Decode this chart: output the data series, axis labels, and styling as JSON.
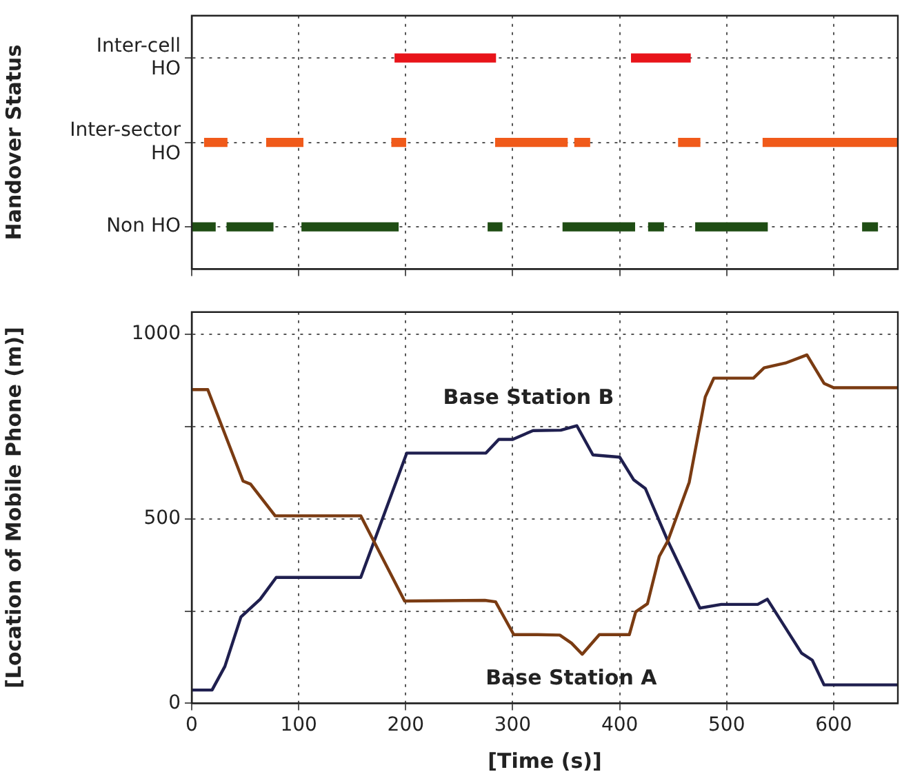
{
  "chart_data": [
    {
      "type": "bar",
      "orientation": "horizontal",
      "ylabel": "Handover Status",
      "xlim": [
        0,
        660
      ],
      "xticks": [
        0,
        100,
        200,
        300,
        400,
        500,
        600
      ],
      "categories": [
        "Inter-cell HO",
        "Inter-sector HO",
        "Non HO"
      ],
      "grid": true,
      "tick_labels": "y",
      "legend": false,
      "series": [
        {
          "colors": [
            "#e8141a",
            "#f05a1a",
            "#1f4d14"
          ],
          "base": [
            190,
            12,
            1
          ],
          "values": [
            94,
            21,
            21
          ]
        },
        {
          "colors": [
            "#e8141a",
            "#f05a1a",
            "#1f4d14"
          ],
          "base": [
            411,
            70,
            33
          ],
          "values": [
            55,
            34,
            43
          ]
        },
        {
          "colors": [
            "#e8141a",
            "#f05a1a",
            "#1f4d14"
          ],
          "base": [
            null,
            187,
            103
          ],
          "values": [
            null,
            13,
            90
          ]
        },
        {
          "colors": [
            "#e8141a",
            "#f05a1a",
            "#1f4d14"
          ],
          "base": [
            null,
            284,
            277
          ],
          "values": [
            null,
            67,
            13
          ]
        },
        {
          "colors": [
            "#e8141a",
            "#f05a1a",
            "#1f4d14"
          ],
          "base": [
            null,
            358,
            347
          ],
          "values": [
            null,
            14,
            67
          ]
        },
        {
          "colors": [
            "#e8141a",
            "#f05a1a",
            "#1f4d14"
          ],
          "base": [
            null,
            455,
            427
          ],
          "values": [
            null,
            20,
            14
          ]
        },
        {
          "colors": [
            "#e8141a",
            "#f05a1a",
            "#1f4d14"
          ],
          "base": [
            null,
            534,
            471
          ],
          "values": [
            null,
            126,
            67
          ]
        },
        {
          "colors": [
            "#e8141a",
            "#f05a1a",
            "#1f4d14"
          ],
          "base": [
            null,
            null,
            627
          ],
          "values": [
            null,
            null,
            14
          ]
        }
      ]
    },
    {
      "type": "line",
      "xlabel": "[Time (s)]",
      "ylabel": "[Location of Mobile Phone (m)]",
      "xlim": [
        0,
        660
      ],
      "xticks": [
        0,
        100,
        200,
        300,
        400,
        500,
        600
      ],
      "ylim": [
        0,
        1060
      ],
      "yticks": [
        0,
        {
          "value": 250,
          "label": null
        },
        500,
        {
          "value": 750,
          "label": null
        },
        1000
      ],
      "grid": true,
      "legend": false,
      "marker": "none",
      "series": [
        {
          "name": "Base Station A",
          "color": "#7a3b12",
          "x": [
            0,
            15,
            48,
            55,
            78,
            158,
            199,
            274,
            284,
            301,
            323,
            344,
            355,
            365,
            381,
            409,
            415,
            426,
            437,
            445,
            465,
            480,
            488,
            525,
            535,
            555,
            575,
            591,
            600,
            660
          ],
          "values": [
            850,
            850,
            602,
            594,
            508,
            508,
            277,
            279,
            275,
            186,
            186,
            185,
            163,
            133,
            186,
            186,
            248,
            270,
            398,
            440,
            599,
            830,
            881,
            881,
            909,
            922,
            944,
            867,
            855,
            855
          ]
        },
        {
          "name": "Base Station B",
          "color": "#1f1f4f",
          "x": [
            0,
            19,
            31,
            46,
            64,
            79,
            158,
            201,
            275,
            287,
            300,
            319,
            345,
            360,
            375,
            400,
            413,
            424,
            445,
            475,
            495,
            529,
            538,
            570,
            580,
            591,
            660
          ],
          "values": [
            36,
            36,
            100,
            234,
            282,
            341,
            341,
            678,
            678,
            715,
            715,
            739,
            740,
            752,
            673,
            667,
            606,
            582,
            440,
            258,
            268,
            268,
            282,
            136,
            117,
            50,
            50
          ]
        }
      ]
    }
  ]
}
